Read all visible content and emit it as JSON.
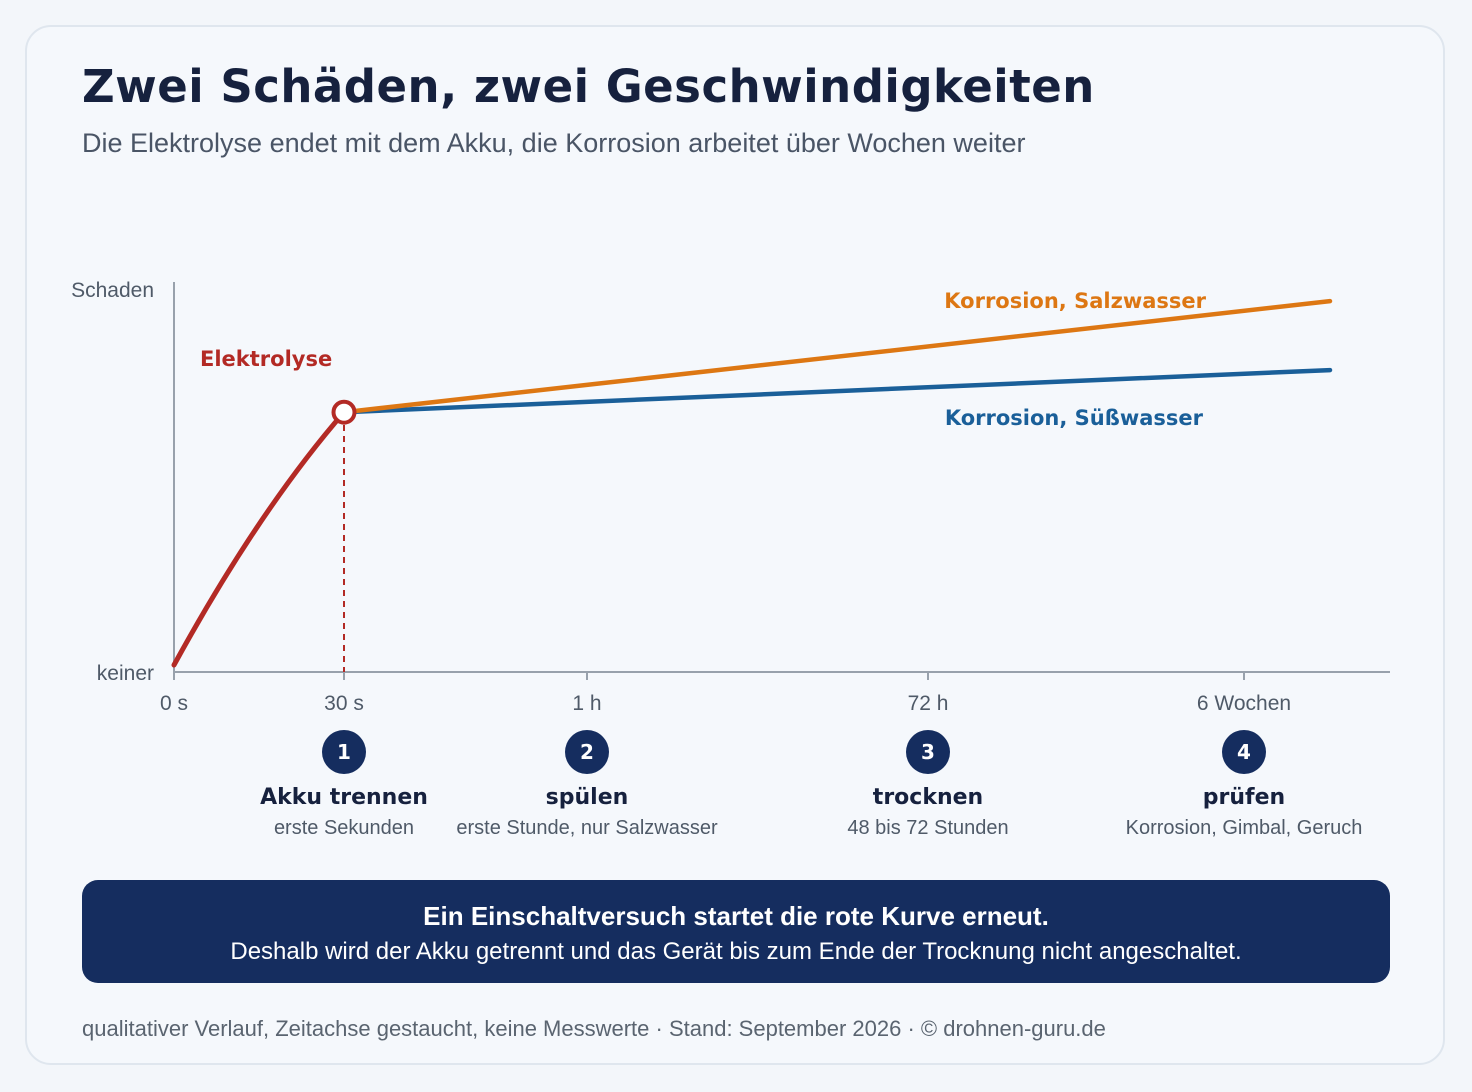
{
  "title": "Zwei Schäden, zwei Geschwindigkeiten",
  "subtitle": "Die Elektrolyse endet mit dem Akku, die Korrosion arbeitet über Wochen weiter",
  "colors": {
    "elektrolyse": "#b32a25",
    "salzwasser": "#dd7713",
    "suesswasser": "#1a5f99",
    "axis": "#98a1ac",
    "step_badge": "#152d5f"
  },
  "chart_data": {
    "type": "line",
    "ylabel_top": "Schaden",
    "ylabel_bottom": "keiner",
    "x_ticks": [
      "0 s",
      "30 s",
      "1 h",
      "72 h",
      "6 Wochen"
    ],
    "x_scale": "gestaucht (qualitativ)",
    "grid": false,
    "series": [
      {
        "name": "Elektrolyse",
        "color": "#b32a25",
        "points": [
          [
            "0 s",
            0
          ],
          [
            "30 s",
            0.66
          ]
        ]
      },
      {
        "name": "Korrosion, Salzwasser",
        "color": "#dd7713",
        "points": [
          [
            "30 s",
            0.66
          ],
          [
            "nach 6 Wochen",
            0.95
          ]
        ]
      },
      {
        "name": "Korrosion, Süßwasser",
        "color": "#1a5f99",
        "points": [
          [
            "30 s",
            0.66
          ],
          [
            "nach 6 Wochen",
            0.77
          ]
        ]
      }
    ],
    "marker": {
      "at": "30 s",
      "label": "Akku trennen"
    }
  },
  "steps": [
    {
      "num": "1",
      "title": "Akku trennen",
      "sub": "erste Sekunden"
    },
    {
      "num": "2",
      "title": "spülen",
      "sub": "erste Stunde, nur Salzwasser"
    },
    {
      "num": "3",
      "title": "trocknen",
      "sub": "48 bis 72 Stunden"
    },
    {
      "num": "4",
      "title": "prüfen",
      "sub": "Korrosion, Gimbal, Geruch"
    }
  ],
  "banner": {
    "line1": "Ein Einschaltversuch startet die rote Kurve erneut.",
    "line2": "Deshalb wird der Akku getrennt und das Gerät bis zum Ende der Trocknung nicht angeschaltet."
  },
  "footer": "qualitativer Verlauf, Zeitachse gestaucht, keine Messwerte · Stand: September 2026 · © drohnen-guru.de"
}
